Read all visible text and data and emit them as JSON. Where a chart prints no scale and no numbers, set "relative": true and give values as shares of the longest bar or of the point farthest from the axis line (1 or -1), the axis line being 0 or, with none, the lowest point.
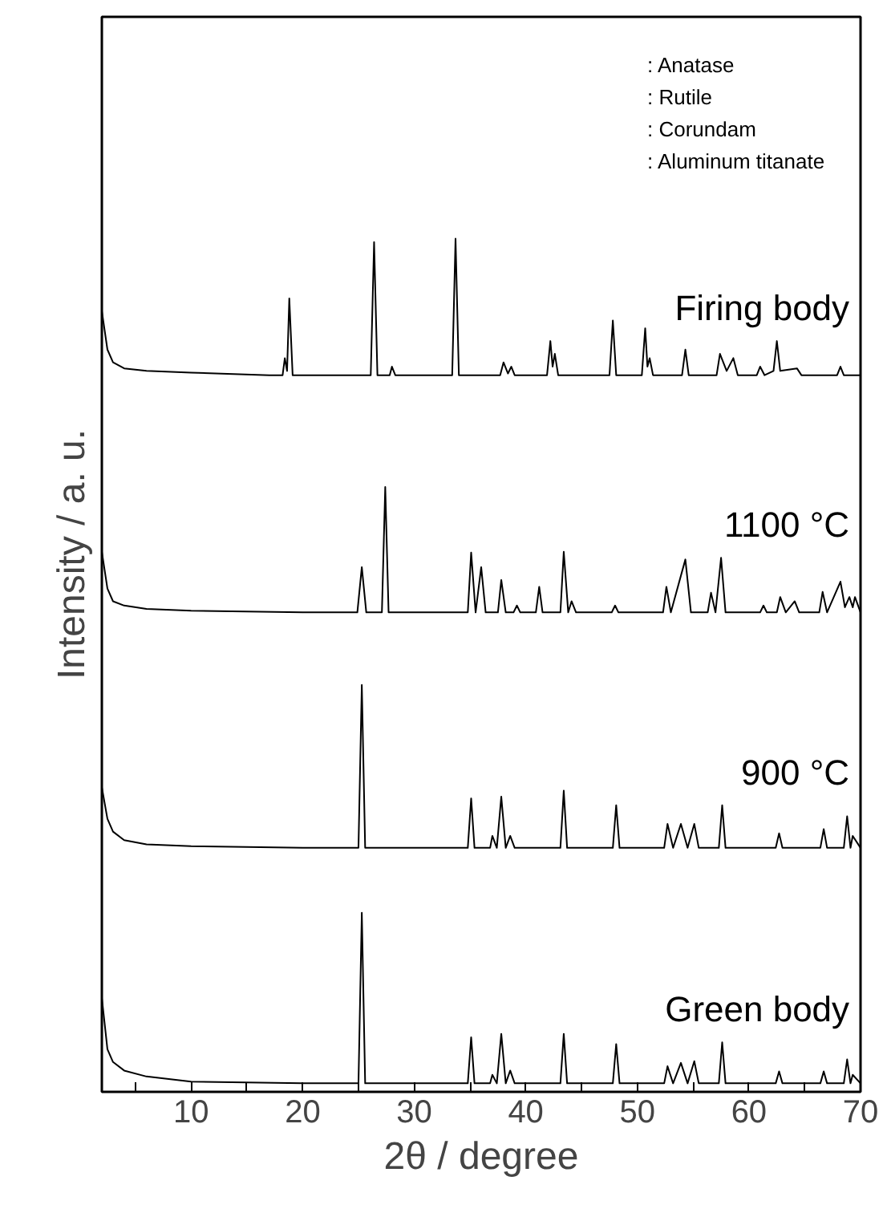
{
  "chart_data": {
    "type": "line",
    "relative": true,
    "xlabel": "2θ / degree",
    "ylabel": "Intensity / a. u.",
    "xlim": [
      2,
      70
    ],
    "xticks": [
      {
        "value": 5,
        "label": null
      },
      10,
      {
        "value": 15,
        "label": null
      },
      20,
      {
        "value": 25,
        "label": null
      },
      30,
      {
        "value": 35,
        "label": null
      },
      40,
      {
        "value": 45,
        "label": null
      },
      50,
      {
        "value": 55,
        "label": null
      },
      60,
      {
        "value": 65,
        "label": null
      },
      70
    ],
    "grid": false,
    "marker": "none",
    "line_style": "solid",
    "annotations": [
      ": Anatase",
      ": Rutile",
      ": Corundam",
      ": Aluminum titanate"
    ],
    "series": [
      {
        "name": "Green body",
        "color": "#000000",
        "x": [
          2,
          2.5,
          3,
          4,
          6,
          10,
          20,
          25.0,
          25.3,
          25.6,
          34.8,
          35.1,
          35.4,
          36.8,
          37.0,
          37.4,
          37.8,
          38.2,
          38.6,
          39.0,
          43.1,
          43.4,
          43.7,
          47.8,
          48.1,
          48.4,
          52.4,
          52.7,
          53.2,
          53.9,
          54.5,
          55.1,
          55.5,
          57.3,
          57.6,
          57.9,
          62.4,
          62.7,
          63.0,
          66.4,
          66.7,
          67.0,
          68.5,
          68.8,
          69.1,
          69.3,
          70
        ],
        "values": [
          0.11,
          0.05,
          0.035,
          0.025,
          0.018,
          0.012,
          0.01,
          0.01,
          0.21,
          0.01,
          0.01,
          0.064,
          0.01,
          0.01,
          0.02,
          0.01,
          0.068,
          0.01,
          0.025,
          0.01,
          0.01,
          0.068,
          0.01,
          0.01,
          0.056,
          0.01,
          0.01,
          0.03,
          0.01,
          0.034,
          0.01,
          0.036,
          0.01,
          0.01,
          0.058,
          0.01,
          0.01,
          0.024,
          0.01,
          0.01,
          0.024,
          0.01,
          0.01,
          0.038,
          0.01,
          0.02,
          0.01
        ]
      },
      {
        "name": "900 °C",
        "color": "#000000",
        "x": [
          2,
          2.5,
          3,
          4,
          6,
          10,
          20,
          25.0,
          25.3,
          25.6,
          34.8,
          35.1,
          35.4,
          36.8,
          37.0,
          37.4,
          37.8,
          38.2,
          38.6,
          39.0,
          43.1,
          43.4,
          43.7,
          47.8,
          48.1,
          48.4,
          52.4,
          52.7,
          53.2,
          53.9,
          54.5,
          55.1,
          55.5,
          57.3,
          57.6,
          57.9,
          62.4,
          62.7,
          63.0,
          66.4,
          66.7,
          67.0,
          68.5,
          68.8,
          69.1,
          69.3,
          70
        ],
        "values": [
          0.357,
          0.32,
          0.305,
          0.295,
          0.29,
          0.288,
          0.286,
          0.286,
          0.477,
          0.286,
          0.286,
          0.344,
          0.286,
          0.286,
          0.3,
          0.286,
          0.346,
          0.286,
          0.3,
          0.286,
          0.286,
          0.353,
          0.286,
          0.286,
          0.336,
          0.286,
          0.286,
          0.314,
          0.286,
          0.314,
          0.286,
          0.314,
          0.286,
          0.286,
          0.336,
          0.286,
          0.286,
          0.303,
          0.286,
          0.286,
          0.308,
          0.286,
          0.286,
          0.323,
          0.286,
          0.3,
          0.286
        ]
      },
      {
        "name": "1100 °C",
        "color": "#000000",
        "x": [
          2,
          2.5,
          3,
          4,
          6,
          10,
          20,
          24.9,
          25.3,
          25.7,
          27.1,
          27.4,
          27.7,
          34.8,
          35.1,
          35.5,
          36.0,
          36.4,
          37.5,
          37.8,
          38.2,
          38.9,
          39.2,
          39.5,
          40.9,
          41.2,
          41.5,
          43.1,
          43.4,
          43.8,
          44.1,
          44.5,
          47.7,
          48.0,
          48.3,
          52.3,
          52.6,
          53.0,
          54.3,
          54.8,
          56.3,
          56.6,
          57.0,
          57.5,
          57.9,
          61.0,
          61.3,
          61.6,
          62.5,
          62.8,
          63.3,
          64.1,
          64.5,
          66.3,
          66.6,
          67.0,
          68.2,
          68.6,
          69.0,
          69.3,
          69.5,
          70
        ],
        "values": [
          0.633,
          0.59,
          0.575,
          0.57,
          0.566,
          0.564,
          0.562,
          0.562,
          0.615,
          0.562,
          0.562,
          0.709,
          0.562,
          0.562,
          0.632,
          0.562,
          0.615,
          0.562,
          0.562,
          0.6,
          0.562,
          0.562,
          0.57,
          0.562,
          0.562,
          0.592,
          0.562,
          0.562,
          0.633,
          0.562,
          0.575,
          0.562,
          0.562,
          0.57,
          0.562,
          0.562,
          0.592,
          0.562,
          0.624,
          0.562,
          0.562,
          0.585,
          0.562,
          0.626,
          0.562,
          0.562,
          0.57,
          0.562,
          0.562,
          0.58,
          0.562,
          0.575,
          0.562,
          0.562,
          0.586,
          0.562,
          0.598,
          0.568,
          0.58,
          0.568,
          0.58,
          0.562
        ]
      },
      {
        "name": "Firing body",
        "color": "#000000",
        "x": [
          2,
          2.5,
          3,
          4,
          6,
          10,
          17,
          18.2,
          18.4,
          18.6,
          18.8,
          19.1,
          26.1,
          26.4,
          26.7,
          27.8,
          28.0,
          28.3,
          33.4,
          33.7,
          34.0,
          37.7,
          38.0,
          38.4,
          38.7,
          39.0,
          41.9,
          42.2,
          42.4,
          42.6,
          42.9,
          47.5,
          47.8,
          48.1,
          50.4,
          50.7,
          50.9,
          51.1,
          51.4,
          54.0,
          54.3,
          54.6,
          57.1,
          57.4,
          58.0,
          58.6,
          59.0,
          60.7,
          61.0,
          61.4,
          62.2,
          62.5,
          62.8,
          64.3,
          64.7,
          67.9,
          68.2,
          68.5,
          70
        ],
        "values": [
          0.915,
          0.87,
          0.855,
          0.848,
          0.845,
          0.843,
          0.84,
          0.84,
          0.86,
          0.845,
          0.93,
          0.84,
          0.84,
          0.996,
          0.84,
          0.84,
          0.85,
          0.84,
          0.84,
          1.0,
          0.84,
          0.84,
          0.855,
          0.842,
          0.85,
          0.84,
          0.84,
          0.88,
          0.85,
          0.865,
          0.84,
          0.84,
          0.904,
          0.84,
          0.84,
          0.895,
          0.85,
          0.86,
          0.84,
          0.84,
          0.87,
          0.84,
          0.84,
          0.865,
          0.845,
          0.86,
          0.84,
          0.84,
          0.85,
          0.84,
          0.845,
          0.88,
          0.845,
          0.848,
          0.84,
          0.84,
          0.85,
          0.84,
          0.84
        ]
      }
    ]
  }
}
